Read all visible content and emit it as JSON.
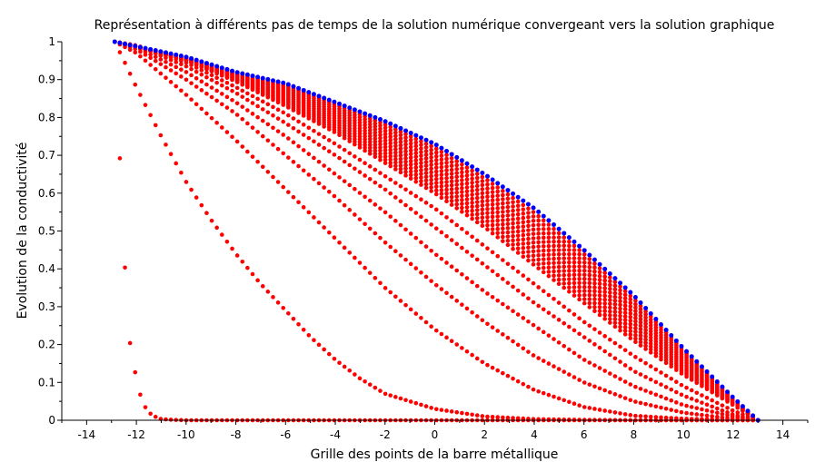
{
  "chart_data": {
    "type": "scatter",
    "title": "Représentation à différents pas de temps de la solution numérique convergeant vers la solution graphique",
    "xlabel": "Grille des points de la barre métallique",
    "ylabel": "Evolution de la conductivité",
    "xlim": [
      -15,
      15
    ],
    "ylim": [
      0,
      1
    ],
    "x_ticks": [
      -14,
      -12,
      -10,
      -8,
      -6,
      -4,
      -2,
      0,
      2,
      4,
      6,
      8,
      10,
      12,
      14
    ],
    "y_ticks": [
      0,
      0.1,
      0.2,
      0.3,
      0.4,
      0.5,
      0.6,
      0.7,
      0.8,
      0.9,
      1
    ],
    "x_tick_labels": [
      "-14",
      "-12",
      "-10",
      "-8",
      "-6",
      "-4",
      "-2",
      "0",
      "2",
      "4",
      "6",
      "8",
      "10",
      "12",
      "14"
    ],
    "y_tick_labels": [
      "0",
      "0.1",
      "0.2",
      "0.3",
      "0.4",
      "0.5",
      "0.6",
      "0.7",
      "0.8",
      "0.9",
      "1"
    ],
    "grid": false,
    "legend": "none",
    "grid_points": {
      "x_start": -12.87,
      "x_end": 13.0,
      "count": 127
    },
    "series": [
      {
        "color": "#0000ff",
        "kind": "analytic",
        "x": [
          -12.87,
          -10,
          -8,
          -6,
          -4,
          -2,
          0,
          2,
          4,
          6,
          8,
          10,
          12,
          13
        ],
        "values": [
          1.0,
          0.96,
          0.92,
          0.89,
          0.84,
          0.79,
          0.73,
          0.65,
          0.56,
          0.45,
          0.33,
          0.19,
          0.06,
          0.0
        ]
      },
      {
        "color": "#ff0000",
        "kind": "numeric",
        "x": [
          -12.87,
          -12.5,
          -12.27,
          -11.97,
          -11.75,
          -11.5,
          -11.2,
          -11.0,
          -10.5,
          -10,
          -8,
          -6,
          -4,
          -2,
          0,
          2,
          4,
          6,
          8,
          10,
          12,
          13
        ],
        "values": [
          1.0,
          0.445,
          0.21,
          0.097,
          0.046,
          0.02,
          0.008,
          0.003,
          0.001,
          0.0,
          0.0,
          0.0,
          0.0,
          0.0,
          0.0,
          0.0,
          0.0,
          0.0,
          0.0,
          0.0,
          0.0,
          0.0
        ]
      },
      {
        "color": "#ff0000",
        "kind": "numeric",
        "x": [
          -12.87,
          -12.5,
          -12,
          -11,
          -10,
          -9,
          -8,
          -7,
          -6,
          -5,
          -4,
          -3,
          -2,
          0,
          2,
          4,
          6,
          8,
          10,
          12,
          13
        ],
        "values": [
          1.0,
          0.95,
          0.88,
          0.75,
          0.63,
          0.53,
          0.44,
          0.36,
          0.29,
          0.22,
          0.16,
          0.11,
          0.07,
          0.03,
          0.01,
          0.003,
          0.001,
          0.0,
          0.0,
          0.0,
          0.0
        ]
      },
      {
        "color": "#ff0000",
        "kind": "numeric",
        "x": [
          -12.87,
          -12,
          -10,
          -8,
          -6,
          -4,
          -2,
          0,
          2,
          4,
          6,
          8,
          10,
          12,
          13
        ],
        "values": [
          1.0,
          0.97,
          0.86,
          0.74,
          0.61,
          0.48,
          0.35,
          0.24,
          0.15,
          0.08,
          0.035,
          0.012,
          0.004,
          0.001,
          0.0
        ]
      },
      {
        "color": "#ff0000",
        "kind": "numeric",
        "x": [
          -12.87,
          -12,
          -10,
          -8,
          -6,
          -4,
          -2,
          0,
          2,
          4,
          6,
          8,
          10,
          12,
          13
        ],
        "values": [
          1.0,
          0.98,
          0.9,
          0.81,
          0.7,
          0.59,
          0.47,
          0.36,
          0.26,
          0.17,
          0.1,
          0.05,
          0.02,
          0.004,
          0.0
        ]
      },
      {
        "color": "#ff0000",
        "kind": "numeric",
        "x": [
          -12.87,
          -12,
          -10,
          -8,
          -6,
          -4,
          -2,
          0,
          2,
          4,
          6,
          8,
          10,
          12,
          13
        ],
        "values": [
          1.0,
          0.985,
          0.92,
          0.84,
          0.75,
          0.65,
          0.55,
          0.44,
          0.34,
          0.25,
          0.16,
          0.09,
          0.04,
          0.01,
          0.0
        ]
      },
      {
        "color": "#ff0000",
        "kind": "numeric",
        "x": [
          -12.87,
          -12,
          -10,
          -8,
          -6,
          -4,
          -2,
          0,
          2,
          4,
          6,
          8,
          10,
          12,
          13
        ],
        "values": [
          1.0,
          0.99,
          0.935,
          0.865,
          0.785,
          0.7,
          0.61,
          0.51,
          0.41,
          0.31,
          0.22,
          0.13,
          0.065,
          0.015,
          0.0
        ]
      },
      {
        "color": "#ff0000",
        "kind": "numeric",
        "x": [
          -12.87,
          -12,
          -10,
          -8,
          -6,
          -4,
          -2,
          0,
          2,
          4,
          6,
          8,
          10,
          12,
          13
        ],
        "values": [
          1.0,
          0.99,
          0.945,
          0.88,
          0.81,
          0.73,
          0.645,
          0.56,
          0.46,
          0.36,
          0.26,
          0.17,
          0.09,
          0.025,
          0.0
        ]
      },
      {
        "color": "#ff0000",
        "kind": "numeric",
        "x": [
          -12.87,
          -12,
          -10,
          -8,
          -6,
          -4,
          -2,
          0,
          2,
          4,
          6,
          8,
          10,
          12,
          13
        ],
        "values": [
          1.0,
          0.99,
          0.95,
          0.895,
          0.83,
          0.76,
          0.68,
          0.6,
          0.51,
          0.41,
          0.31,
          0.21,
          0.12,
          0.04,
          0.0
        ]
      }
    ]
  }
}
